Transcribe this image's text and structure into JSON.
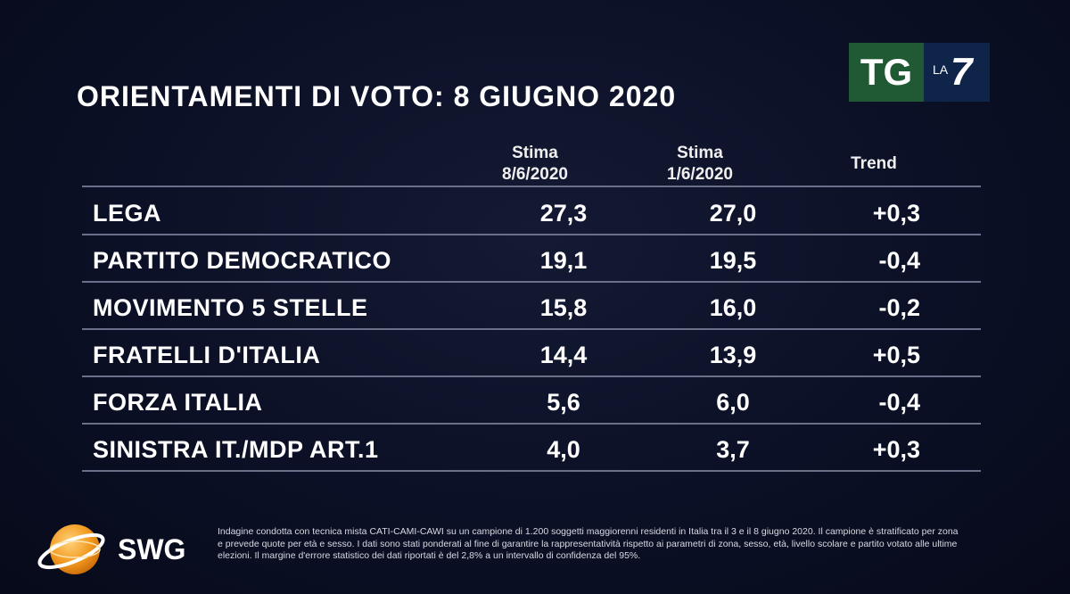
{
  "title": "ORIENTAMENTI DI VOTO: 8 GIUGNO 2020",
  "logo": {
    "tg": "TG",
    "la": "LA",
    "seven": "7"
  },
  "columns": {
    "estimate1": [
      "Stima",
      "8/6/2020"
    ],
    "estimate2": [
      "Stima",
      "1/6/2020"
    ],
    "trend": "Trend"
  },
  "rows": [
    {
      "party": "LEGA",
      "v1": "27,3",
      "v2": "27,0",
      "trend": "+0,3"
    },
    {
      "party": "PARTITO DEMOCRATICO",
      "v1": "19,1",
      "v2": "19,5",
      "trend": "-0,4"
    },
    {
      "party": "MOVIMENTO 5 STELLE",
      "v1": "15,8",
      "v2": "16,0",
      "trend": "-0,2"
    },
    {
      "party": "FRATELLI D'ITALIA",
      "v1": "14,4",
      "v2": "13,9",
      "trend": "+0,5"
    },
    {
      "party": "FORZA ITALIA",
      "v1": "5,6",
      "v2": "6,0",
      "trend": "-0,4"
    },
    {
      "party": "SINISTRA IT./MDP ART.1",
      "v1": "4,0",
      "v2": "3,7",
      "trend": "+0,3"
    }
  ],
  "brand": "SWG",
  "footnote": "Indagine condotta con tecnica mista CATI-CAMI-CAWI su un campione di 1.200 soggetti maggiorenni residenti in Italia tra il 3 e il 8 giugno 2020. Il campione è stratificato per zona e prevede quote per età e sesso. I dati sono stati ponderati al fine di garantire la rappresentatività rispetto ai parametri di zona, sesso, età, livello scolare e partito votato alle ultime elezioni. Il margine d'errore statistico dei dati riportati è del 2,8% a un intervallo di confidenza del 95%.",
  "colors": {
    "background": "#0b1026",
    "tg_green": "#1f5a34",
    "la7_blue": "#0f2449",
    "swg_orange": "#f29a1f",
    "rule": "#6a708a"
  }
}
